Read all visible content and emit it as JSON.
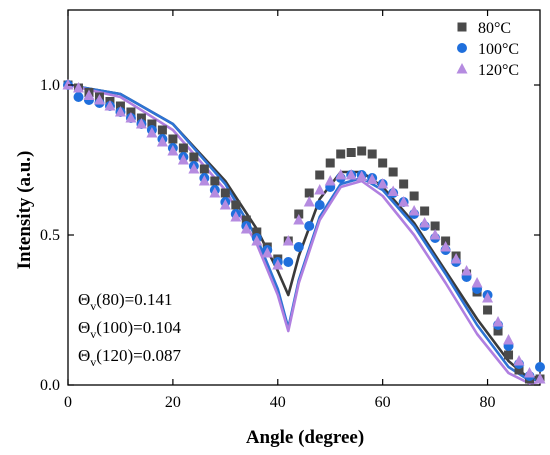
{
  "chart_data": {
    "type": "scatter",
    "xlabel": "Angle (degree)",
    "ylabel": "Intensity (a.u.)",
    "xlim": [
      0,
      90
    ],
    "ylim": [
      0,
      1.25
    ],
    "xticks": [
      0,
      20,
      40,
      60,
      80
    ],
    "xtick_labels": [
      "0",
      "20",
      "40",
      "60",
      "80"
    ],
    "yticks": [
      0,
      0.5,
      1.0
    ],
    "ytick_labels": [
      "0.0",
      "0.5",
      "1.0"
    ],
    "grid": false,
    "legend_position": "top-right",
    "series": [
      {
        "name": "80°C",
        "color": "#4a4a4a",
        "marker": "square",
        "x": [
          0,
          2,
          4,
          6,
          8,
          10,
          12,
          14,
          16,
          18,
          20,
          22,
          24,
          26,
          28,
          30,
          32,
          34,
          36,
          38,
          40,
          42,
          44,
          46,
          48,
          50,
          52,
          54,
          56,
          58,
          60,
          62,
          64,
          66,
          68,
          70,
          72,
          74,
          76,
          78,
          80,
          82,
          84,
          86,
          88,
          90
        ],
        "y": [
          1.0,
          0.99,
          0.975,
          0.96,
          0.945,
          0.93,
          0.91,
          0.89,
          0.87,
          0.85,
          0.82,
          0.79,
          0.76,
          0.72,
          0.68,
          0.64,
          0.6,
          0.55,
          0.51,
          0.46,
          0.42,
          0.48,
          0.57,
          0.64,
          0.7,
          0.74,
          0.77,
          0.775,
          0.78,
          0.77,
          0.74,
          0.71,
          0.67,
          0.63,
          0.58,
          0.53,
          0.48,
          0.43,
          0.37,
          0.31,
          0.25,
          0.18,
          0.1,
          0.05,
          0.02,
          0.02
        ]
      },
      {
        "name": "100°C",
        "color": "#1f6fdc",
        "marker": "circle",
        "x": [
          0,
          2,
          4,
          6,
          8,
          10,
          12,
          14,
          16,
          18,
          20,
          22,
          24,
          26,
          28,
          30,
          32,
          34,
          36,
          38,
          40,
          42,
          44,
          46,
          48,
          50,
          52,
          54,
          56,
          58,
          60,
          62,
          64,
          66,
          68,
          70,
          72,
          74,
          76,
          78,
          80,
          82,
          84,
          86,
          88,
          90
        ],
        "y": [
          1.0,
          0.96,
          0.95,
          0.94,
          0.93,
          0.91,
          0.89,
          0.87,
          0.85,
          0.82,
          0.79,
          0.76,
          0.73,
          0.69,
          0.65,
          0.61,
          0.57,
          0.53,
          0.49,
          0.45,
          0.41,
          0.41,
          0.46,
          0.53,
          0.6,
          0.66,
          0.69,
          0.7,
          0.7,
          0.69,
          0.67,
          0.64,
          0.61,
          0.57,
          0.53,
          0.49,
          0.45,
          0.41,
          0.36,
          0.32,
          0.3,
          0.2,
          0.13,
          0.07,
          0.03,
          0.06
        ]
      },
      {
        "name": "120°C",
        "color": "#b58be0",
        "marker": "triangle",
        "x": [
          0,
          2,
          4,
          6,
          8,
          10,
          12,
          14,
          16,
          18,
          20,
          22,
          24,
          26,
          28,
          30,
          32,
          34,
          36,
          38,
          40,
          42,
          44,
          46,
          48,
          50,
          52,
          54,
          56,
          58,
          60,
          62,
          64,
          66,
          68,
          70,
          72,
          74,
          76,
          78,
          80,
          82,
          84,
          86,
          88,
          90
        ],
        "y": [
          1.0,
          0.99,
          0.965,
          0.95,
          0.93,
          0.91,
          0.89,
          0.87,
          0.84,
          0.81,
          0.78,
          0.75,
          0.72,
          0.68,
          0.64,
          0.6,
          0.56,
          0.52,
          0.48,
          0.44,
          0.4,
          0.48,
          0.55,
          0.61,
          0.65,
          0.68,
          0.7,
          0.7,
          0.695,
          0.685,
          0.67,
          0.645,
          0.61,
          0.58,
          0.54,
          0.5,
          0.46,
          0.42,
          0.38,
          0.34,
          0.29,
          0.21,
          0.15,
          0.08,
          0.04,
          0.02
        ]
      }
    ],
    "fit_lines": [
      {
        "series": "80°C",
        "color": "#3a3a3a",
        "x": [
          0,
          10,
          20,
          30,
          36,
          40,
          42,
          44,
          48,
          52,
          56,
          60,
          66,
          72,
          78,
          84,
          88,
          90
        ],
        "y": [
          1.0,
          0.97,
          0.87,
          0.68,
          0.52,
          0.38,
          0.3,
          0.43,
          0.62,
          0.71,
          0.71,
          0.66,
          0.54,
          0.38,
          0.22,
          0.08,
          0.02,
          0.03
        ]
      },
      {
        "series": "100°C",
        "color": "#2e73d4",
        "x": [
          0,
          10,
          20,
          30,
          36,
          40,
          42,
          44,
          48,
          52,
          56,
          60,
          66,
          72,
          78,
          84,
          88,
          90
        ],
        "y": [
          1.0,
          0.97,
          0.87,
          0.67,
          0.49,
          0.32,
          0.19,
          0.35,
          0.56,
          0.67,
          0.69,
          0.65,
          0.53,
          0.37,
          0.2,
          0.06,
          0.015,
          0.02
        ]
      },
      {
        "series": "120°C",
        "color": "#b07fe0",
        "x": [
          0,
          10,
          20,
          30,
          36,
          40,
          42,
          44,
          48,
          52,
          56,
          60,
          66,
          72,
          78,
          84,
          88,
          90
        ],
        "y": [
          1.0,
          0.96,
          0.85,
          0.65,
          0.47,
          0.3,
          0.18,
          0.34,
          0.55,
          0.66,
          0.68,
          0.63,
          0.5,
          0.34,
          0.17,
          0.04,
          0.005,
          0.01
        ]
      }
    ],
    "annotations": [
      {
        "base": "Θ",
        "sub": "v",
        "rest": "(80)=0.141"
      },
      {
        "base": "Θ",
        "sub": "v",
        "rest": "(100)=0.104"
      },
      {
        "base": "Θ",
        "sub": "v",
        "rest": "(120)=0.087"
      }
    ]
  }
}
